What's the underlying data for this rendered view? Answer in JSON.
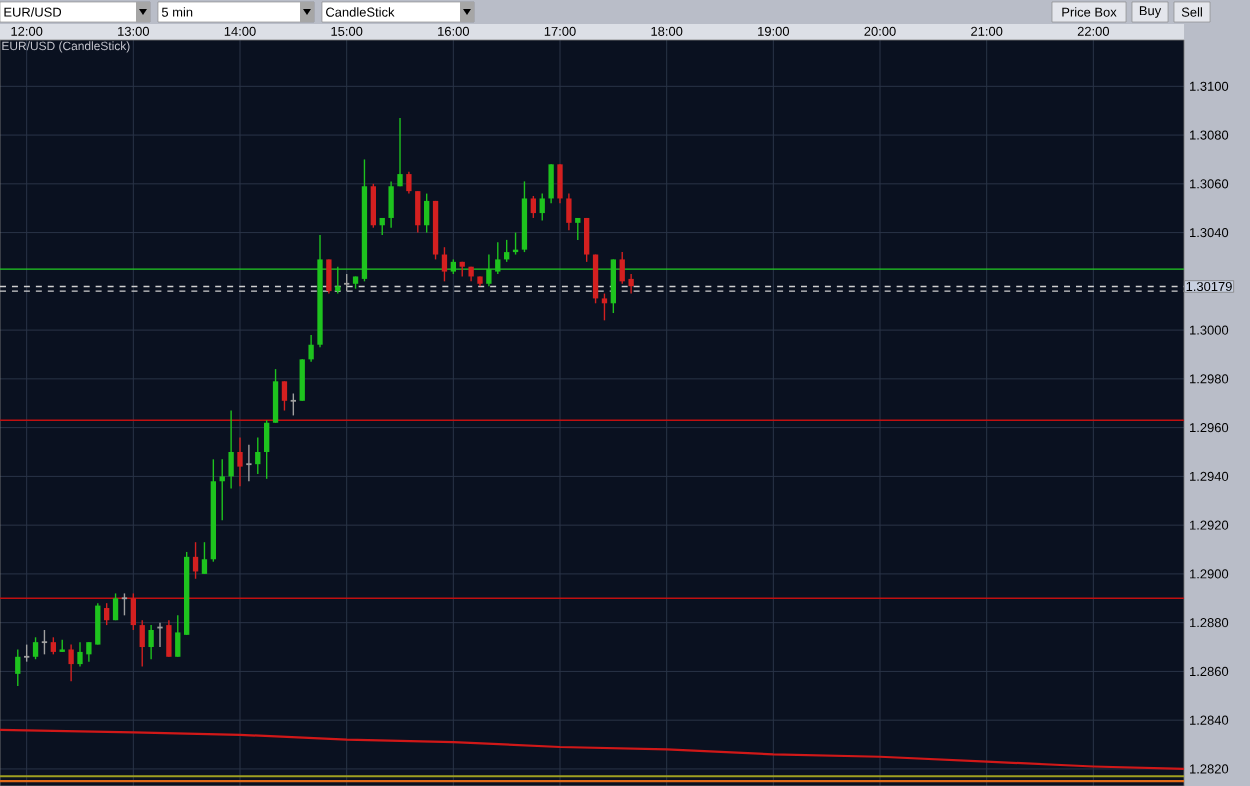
{
  "chart_data": {
    "type": "candlestick",
    "title": "EUR/USD (CandleStick)",
    "annotations": [
      "EUR/USD",
      "5 min",
      "CandleStick",
      "Price Box",
      "Buy",
      "Sell"
    ],
    "x": [
      11.9167,
      12.0,
      12.0833,
      12.1667,
      12.25,
      12.3333,
      12.4167,
      12.5,
      12.5833,
      12.6667,
      12.75,
      12.8333,
      12.9167,
      13.0,
      13.0833,
      13.1667,
      13.25,
      13.3333,
      13.4167,
      13.5,
      13.5833,
      13.6667,
      13.75,
      13.8333,
      13.9167,
      14.0,
      14.0833,
      14.1667,
      14.25,
      14.3333,
      14.4167,
      14.5,
      14.5833,
      14.6667,
      14.75,
      14.8333,
      14.9167,
      15.0,
      15.0833,
      15.1667,
      15.25,
      15.3333,
      15.4167,
      15.5,
      15.5833,
      15.6667,
      15.75,
      15.8333,
      15.9167,
      16.0,
      16.0833,
      16.1667,
      16.25,
      16.3333,
      16.4167,
      16.5,
      16.5833,
      16.6667,
      16.75,
      16.8333,
      16.9167,
      17.0,
      17.0833,
      17.1667,
      17.25,
      17.3333,
      17.4167,
      17.5,
      17.5833,
      17.6667
    ],
    "ohlc": [
      [
        1.2859,
        1.2869,
        1.2854,
        1.2866
      ],
      [
        1.2866,
        1.2871,
        1.2864,
        1.2866
      ],
      [
        1.2866,
        1.2874,
        1.2865,
        1.2872
      ],
      [
        1.2872,
        1.2877,
        1.2867,
        1.2872
      ],
      [
        1.2872,
        1.2874,
        1.2867,
        1.2868
      ],
      [
        1.2868,
        1.2873,
        1.2868,
        1.2869
      ],
      [
        1.2869,
        1.2871,
        1.2856,
        1.2863
      ],
      [
        1.2863,
        1.2872,
        1.2862,
        1.2868
      ],
      [
        1.2867,
        1.2872,
        1.2864,
        1.2872
      ],
      [
        1.2871,
        1.2888,
        1.2871,
        1.2887
      ],
      [
        1.2886,
        1.2888,
        1.2879,
        1.2881
      ],
      [
        1.2881,
        1.2892,
        1.2881,
        1.289
      ],
      [
        1.289,
        1.2892,
        1.2883,
        1.289
      ],
      [
        1.289,
        1.2892,
        1.2877,
        1.2879
      ],
      [
        1.2879,
        1.2881,
        1.2862,
        1.287
      ],
      [
        1.287,
        1.2879,
        1.2865,
        1.2877
      ],
      [
        1.2878,
        1.288,
        1.287,
        1.2878
      ],
      [
        1.2879,
        1.2881,
        1.2866,
        1.2866
      ],
      [
        1.2866,
        1.2883,
        1.2866,
        1.2876
      ],
      [
        1.2875,
        1.2909,
        1.2875,
        1.2907
      ],
      [
        1.2907,
        1.2913,
        1.2898,
        1.2901
      ],
      [
        1.29,
        1.2913,
        1.29,
        1.2906
      ],
      [
        1.2906,
        1.2947,
        1.2905,
        1.2938
      ],
      [
        1.2938,
        1.2947,
        1.2922,
        1.294
      ],
      [
        1.294,
        1.2967,
        1.2935,
        1.295
      ],
      [
        1.295,
        1.2956,
        1.2936,
        1.2944
      ],
      [
        1.2945,
        1.2953,
        1.2938,
        1.2945
      ],
      [
        1.2945,
        1.2956,
        1.2941,
        1.295
      ],
      [
        1.295,
        1.2963,
        1.2939,
        1.2962
      ],
      [
        1.2962,
        1.2984,
        1.2962,
        1.2979
      ],
      [
        1.2979,
        1.2979,
        1.2967,
        1.2971
      ],
      [
        1.2971,
        1.2974,
        1.2965,
        1.2971
      ],
      [
        1.2971,
        1.2988,
        1.2971,
        1.2988
      ],
      [
        1.2988,
        1.2998,
        1.2987,
        1.2994
      ],
      [
        1.2994,
        1.3039,
        1.2993,
        1.3029
      ],
      [
        1.3029,
        1.3029,
        1.3015,
        1.3016
      ],
      [
        1.3016,
        1.3026,
        1.3015,
        1.3018
      ],
      [
        1.3019,
        1.3023,
        1.3016,
        1.3019
      ],
      [
        1.3019,
        1.3022,
        1.3017,
        1.3022
      ],
      [
        1.3021,
        1.307,
        1.302,
        1.3059
      ],
      [
        1.3059,
        1.306,
        1.3042,
        1.3043
      ],
      [
        1.3043,
        1.3046,
        1.3039,
        1.3046
      ],
      [
        1.3046,
        1.3061,
        1.3042,
        1.3059
      ],
      [
        1.3059,
        1.3087,
        1.3059,
        1.3064
      ],
      [
        1.3064,
        1.3065,
        1.3056,
        1.3057
      ],
      [
        1.3057,
        1.3057,
        1.304,
        1.3043
      ],
      [
        1.3043,
        1.3056,
        1.304,
        1.3053
      ],
      [
        1.3053,
        1.3053,
        1.3029,
        1.3031
      ],
      [
        1.3031,
        1.3034,
        1.302,
        1.3024
      ],
      [
        1.3024,
        1.3029,
        1.3023,
        1.3028
      ],
      [
        1.3028,
        1.3028,
        1.3022,
        1.3026
      ],
      [
        1.3026,
        1.3026,
        1.302,
        1.3022
      ],
      [
        1.3022,
        1.3022,
        1.3018,
        1.3019
      ],
      [
        1.3019,
        1.3031,
        1.3018,
        1.3025
      ],
      [
        1.3024,
        1.3036,
        1.3023,
        1.3029
      ],
      [
        1.3029,
        1.3037,
        1.3028,
        1.3032
      ],
      [
        1.3032,
        1.304,
        1.3031,
        1.3033
      ],
      [
        1.3033,
        1.3061,
        1.3032,
        1.3054
      ],
      [
        1.3054,
        1.3055,
        1.3046,
        1.3048
      ],
      [
        1.3048,
        1.3056,
        1.3045,
        1.3054
      ],
      [
        1.3054,
        1.3068,
        1.3052,
        1.3068
      ],
      [
        1.3068,
        1.3068,
        1.3052,
        1.3054
      ],
      [
        1.3054,
        1.3056,
        1.3041,
        1.3044
      ],
      [
        1.3044,
        1.3046,
        1.3037,
        1.3046
      ],
      [
        1.3046,
        1.3046,
        1.3028,
        1.3031
      ],
      [
        1.3031,
        1.3031,
        1.3011,
        1.3013
      ],
      [
        1.3013,
        1.3015,
        1.3004,
        1.3011
      ],
      [
        1.3011,
        1.3029,
        1.3007,
        1.3029
      ],
      [
        1.3029,
        1.3032,
        1.3019,
        1.302
      ],
      [
        1.3021,
        1.3023,
        1.3015,
        1.3018
      ]
    ],
    "colors": [
      "#1ec31e",
      "#a0a0a0",
      "#1ec31e",
      "#a0a0a0",
      "#d42020",
      "#1ec31e",
      "#d42020",
      "#1ec31e",
      "#1ec31e",
      "#1ec31e",
      "#d42020",
      "#1ec31e",
      "#a0a0a0",
      "#d42020",
      "#d42020",
      "#1ec31e",
      "#a0a0a0",
      "#d42020",
      "#1ec31e",
      "#1ec31e",
      "#d42020",
      "#1ec31e",
      "#1ec31e",
      "#1ec31e",
      "#1ec31e",
      "#d42020",
      "#a0a0a0",
      "#1ec31e",
      "#1ec31e",
      "#1ec31e",
      "#d42020",
      "#a0a0a0",
      "#1ec31e",
      "#1ec31e",
      "#1ec31e",
      "#d42020",
      "#1ec31e",
      "#a0a0a0",
      "#1ec31e",
      "#1ec31e",
      "#d42020",
      "#1ec31e",
      "#1ec31e",
      "#1ec31e",
      "#d42020",
      "#d42020",
      "#1ec31e",
      "#d42020",
      "#d42020",
      "#1ec31e",
      "#d42020",
      "#d42020",
      "#d42020",
      "#1ec31e",
      "#1ec31e",
      "#1ec31e",
      "#1ec31e",
      "#1ec31e",
      "#d42020",
      "#1ec31e",
      "#1ec31e",
      "#d42020",
      "#d42020",
      "#1ec31e",
      "#d42020",
      "#d42020",
      "#d42020",
      "#1ec31e",
      "#d42020",
      "#d42020"
    ],
    "series": [
      {
        "type": "line",
        "color": "#d01818",
        "x": [
          11.75,
          13,
          14,
          15,
          16,
          17,
          18,
          19,
          20,
          21,
          22,
          22.85
        ],
        "values": [
          1.2836,
          1.2835,
          1.2834,
          1.2832,
          1.2831,
          1.2829,
          1.2828,
          1.2826,
          1.2825,
          1.2823,
          1.2821,
          1.282
        ]
      },
      {
        "type": "line",
        "color": "#a0a020",
        "x": [
          11.75,
          22.85
        ],
        "values": [
          1.2817,
          1.2817
        ]
      },
      {
        "type": "line",
        "color": "#e06a18",
        "x": [
          11.75,
          22.85
        ],
        "values": [
          1.2815,
          1.2815
        ]
      }
    ],
    "ref_lines": [
      {
        "axis": "y",
        "value": 1.3025,
        "color": "#22cc22"
      },
      {
        "axis": "y",
        "value": 1.2963,
        "color": "#c01010"
      },
      {
        "axis": "y",
        "value": 1.289,
        "color": "#c01010"
      },
      {
        "axis": "y",
        "value": 1.30179,
        "label": "1.30179",
        "color": "#d0d0d0",
        "line_style": "dashed"
      },
      {
        "axis": "y",
        "value": 1.3016,
        "color": "#d0d0d0",
        "line_style": "dashed"
      }
    ],
    "xlim": [
      11.75,
      22.85
    ],
    "ylim": [
      1.2813,
      1.3119
    ],
    "xticks": [
      {
        "value": 12,
        "label": "12:00"
      },
      {
        "value": 13,
        "label": "13:00"
      },
      {
        "value": 14,
        "label": "14:00"
      },
      {
        "value": 15,
        "label": "15:00"
      },
      {
        "value": 16,
        "label": "16:00"
      },
      {
        "value": 17,
        "label": "17:00"
      },
      {
        "value": 18,
        "label": "18:00"
      },
      {
        "value": 19,
        "label": "19:00"
      },
      {
        "value": 20,
        "label": "20:00"
      },
      {
        "value": 21,
        "label": "21:00"
      },
      {
        "value": 22,
        "label": "22:00"
      }
    ],
    "yticks": [
      {
        "value": 1.282,
        "label": "1.2820"
      },
      {
        "value": 1.284,
        "label": "1.2840"
      },
      {
        "value": 1.286,
        "label": "1.2860"
      },
      {
        "value": 1.288,
        "label": "1.2880"
      },
      {
        "value": 1.29,
        "label": "1.2900"
      },
      {
        "value": 1.292,
        "label": "1.2920"
      },
      {
        "value": 1.294,
        "label": "1.2940"
      },
      {
        "value": 1.296,
        "label": "1.2960"
      },
      {
        "value": 1.298,
        "label": "1.2980"
      },
      {
        "value": 1.3,
        "label": "1.3000"
      },
      {
        "value": 1.304,
        "label": "1.3040"
      },
      {
        "value": 1.306,
        "label": "1.3060"
      },
      {
        "value": 1.308,
        "label": "1.3080"
      },
      {
        "value": 1.31,
        "label": "1.3100"
      }
    ],
    "grid": true
  }
}
